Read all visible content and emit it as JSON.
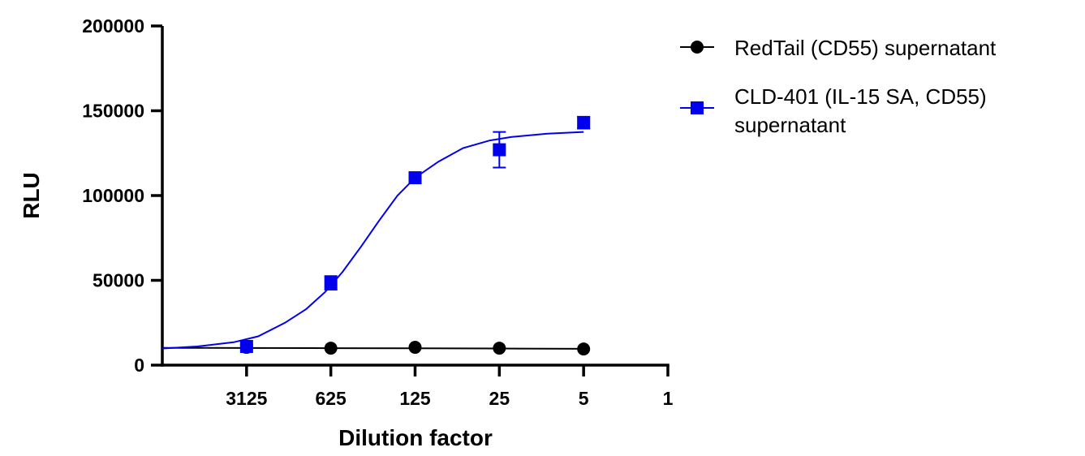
{
  "chart_data": {
    "type": "scatter",
    "title": "",
    "xlabel": "Dilution factor",
    "ylabel": "RLU",
    "xscale": "log",
    "x_reversed": true,
    "xlim": [
      15625,
      1
    ],
    "ylim": [
      0,
      200000
    ],
    "x_ticks": [
      3125,
      625,
      125,
      25,
      5,
      1
    ],
    "x_tick_labels": [
      "3125",
      "625",
      "125",
      "25",
      "5",
      "1"
    ],
    "y_ticks": [
      0,
      50000,
      100000,
      150000,
      200000
    ],
    "y_tick_labels": [
      "0",
      "50000",
      "100000",
      "150000",
      "200000"
    ],
    "grid": false,
    "legend_position": "top-right",
    "series": [
      {
        "name": "RedTail (CD55) supernatant",
        "color": "#000000",
        "marker": "circle",
        "x": [
          3125,
          625,
          125,
          25,
          5
        ],
        "y": [
          10500,
          10000,
          10500,
          10000,
          9500
        ],
        "error": [
          0,
          0,
          0,
          0,
          0
        ],
        "fit": [
          [
            15625,
            10200
          ],
          [
            3125,
            10100
          ],
          [
            625,
            10000
          ],
          [
            125,
            9950
          ],
          [
            25,
            9800
          ],
          [
            5,
            9600
          ]
        ]
      },
      {
        "name": "CLD-401 (IL-15 SA, CD55) supernatant",
        "color": "#0000ee",
        "marker": "square",
        "x": [
          3125,
          625,
          125,
          25,
          5
        ],
        "y": [
          11000,
          48500,
          110500,
          127000,
          143000
        ],
        "error": [
          1000,
          4000,
          2000,
          10500,
          3500
        ],
        "fit": [
          [
            15625,
            9800
          ],
          [
            8000,
            11000
          ],
          [
            4000,
            13500
          ],
          [
            2500,
            17000
          ],
          [
            1500,
            25000
          ],
          [
            1000,
            33000
          ],
          [
            700,
            43000
          ],
          [
            500,
            55000
          ],
          [
            350,
            70000
          ],
          [
            250,
            85000
          ],
          [
            175,
            100000
          ],
          [
            125,
            110500
          ],
          [
            80,
            120000
          ],
          [
            50,
            128000
          ],
          [
            30,
            132500
          ],
          [
            20,
            134500
          ],
          [
            10,
            136500
          ],
          [
            5,
            137500
          ]
        ]
      }
    ]
  }
}
